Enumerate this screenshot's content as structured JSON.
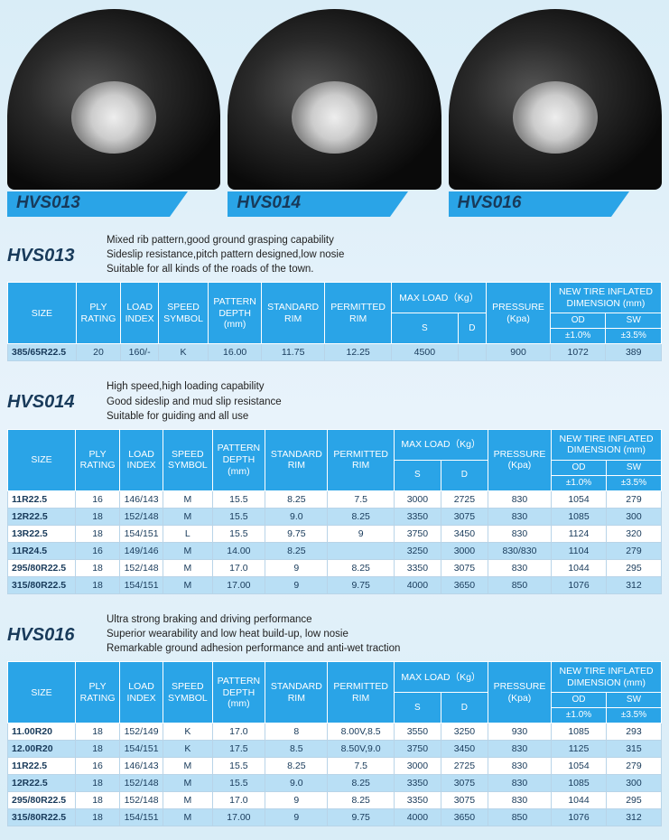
{
  "colors": {
    "header_bg": "#2aa4e7",
    "header_text": "#ffffff",
    "stripe_bg": "#b9dff5",
    "plain_bg": "#ffffff",
    "cell_border": "#b8d4e8",
    "title_color": "#183a5a",
    "label_parallelogram_fill": "#2aa4e7",
    "page_bg_gradient": [
      "#d9edf7",
      "#e8f3fb",
      "#d9edf7"
    ]
  },
  "tires": [
    {
      "label": "HVS013"
    },
    {
      "label": "HVS014"
    },
    {
      "label": "HVS016"
    }
  ],
  "table_headers": {
    "size": "SIZE",
    "ply": "PLY RATING",
    "load": "LOAD INDEX",
    "speed": "SPEED SYMBOL",
    "pattern": "PATTERN DEPTH (mm)",
    "stdrim": "STANDARD RIM",
    "permrim": "PERMITTED RIM",
    "maxload": "MAX LOAD（Kg）",
    "maxload_s": "S",
    "maxload_d": "D",
    "pressure": "PRESSURE (Kpa)",
    "inflated": "NEW TIRE INFLATED DIMENSION (mm)",
    "od": "OD",
    "sw": "SW",
    "od_tol": "±1.0%",
    "sw_tol": "±3.5%"
  },
  "sections": [
    {
      "title": "HVS013",
      "desc": "Mixed rib pattern,good ground grasping capability\nSideslip resistance,pitch pattern designed,low nosie\nSuitable for all kinds of the roads of the town.",
      "rows": [
        {
          "stripe": true,
          "cells": [
            "385/65R22.5",
            "20",
            "160/-",
            "K",
            "16.00",
            "11.75",
            "12.25",
            "4500",
            "",
            "900",
            "1072",
            "389"
          ]
        }
      ]
    },
    {
      "title": "HVS014",
      "desc": "High speed,high loading capability\nGood sideslip and mud slip resistance\nSuitable for guiding and all use",
      "rows": [
        {
          "stripe": false,
          "cells": [
            "11R22.5",
            "16",
            "146/143",
            "M",
            "15.5",
            "8.25",
            "7.5",
            "3000",
            "2725",
            "830",
            "1054",
            "279"
          ]
        },
        {
          "stripe": true,
          "cells": [
            "12R22.5",
            "18",
            "152/148",
            "M",
            "15.5",
            "9.0",
            "8.25",
            "3350",
            "3075",
            "830",
            "1085",
            "300"
          ]
        },
        {
          "stripe": false,
          "cells": [
            "13R22.5",
            "18",
            "154/151",
            "L",
            "15.5",
            "9.75",
            "9",
            "3750",
            "3450",
            "830",
            "1124",
            "320"
          ]
        },
        {
          "stripe": true,
          "cells": [
            "11R24.5",
            "16",
            "149/146",
            "M",
            "14.00",
            "8.25",
            "",
            "3250",
            "3000",
            "830/830",
            "1104",
            "279"
          ]
        },
        {
          "stripe": false,
          "cells": [
            "295/80R22.5",
            "18",
            "152/148",
            "M",
            "17.0",
            "9",
            "8.25",
            "3350",
            "3075",
            "830",
            "1044",
            "295"
          ]
        },
        {
          "stripe": true,
          "cells": [
            "315/80R22.5",
            "18",
            "154/151",
            "M",
            "17.00",
            "9",
            "9.75",
            "4000",
            "3650",
            "850",
            "1076",
            "312"
          ]
        }
      ]
    },
    {
      "title": "HVS016",
      "desc": "Ultra strong braking and driving performance\nSuperior wearability and low heat build-up, low nosie\nRemarkable ground adhesion performance and anti-wet traction",
      "rows": [
        {
          "stripe": false,
          "cells": [
            "11.00R20",
            "18",
            "152/149",
            "K",
            "17.0",
            "8",
            "8.00V,8.5",
            "3550",
            "3250",
            "930",
            "1085",
            "293"
          ]
        },
        {
          "stripe": true,
          "cells": [
            "12.00R20",
            "18",
            "154/151",
            "K",
            "17.5",
            "8.5",
            "8.50V,9.0",
            "3750",
            "3450",
            "830",
            "1125",
            "315"
          ]
        },
        {
          "stripe": false,
          "cells": [
            "11R22.5",
            "16",
            "146/143",
            "M",
            "15.5",
            "8.25",
            "7.5",
            "3000",
            "2725",
            "830",
            "1054",
            "279"
          ]
        },
        {
          "stripe": true,
          "cells": [
            "12R22.5",
            "18",
            "152/148",
            "M",
            "15.5",
            "9.0",
            "8.25",
            "3350",
            "3075",
            "830",
            "1085",
            "300"
          ]
        },
        {
          "stripe": false,
          "cells": [
            "295/80R22.5",
            "18",
            "152/148",
            "M",
            "17.0",
            "9",
            "8.25",
            "3350",
            "3075",
            "830",
            "1044",
            "295"
          ]
        },
        {
          "stripe": true,
          "cells": [
            "315/80R22.5",
            "18",
            "154/151",
            "M",
            "17.00",
            "9",
            "9.75",
            "4000",
            "3650",
            "850",
            "1076",
            "312"
          ]
        }
      ]
    }
  ]
}
